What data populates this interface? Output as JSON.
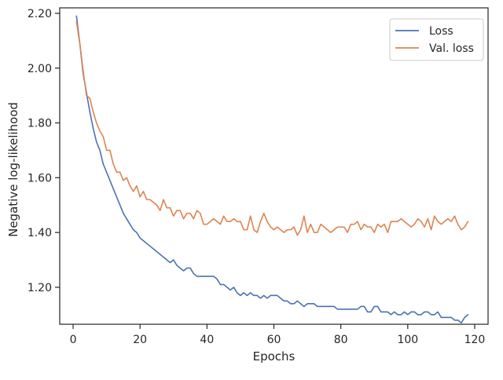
{
  "chart_data": {
    "type": "line",
    "title": "",
    "xlabel": "Epochs",
    "ylabel": "Negative log-likelihood",
    "xlim": [
      -4,
      124
    ],
    "ylim": [
      1.065,
      2.22
    ],
    "xticks": [
      0,
      20,
      40,
      60,
      80,
      100,
      120
    ],
    "xtick_labels": [
      "0",
      "20",
      "40",
      "60",
      "80",
      "100",
      "120"
    ],
    "yticks": [
      1.2,
      1.4,
      1.6,
      1.8,
      2.0,
      2.2
    ],
    "ytick_labels": [
      "1.20",
      "1.40",
      "1.60",
      "1.80",
      "2.00",
      "2.20"
    ],
    "grid": false,
    "legend_position": "top-right",
    "x": [
      1,
      2,
      3,
      4,
      5,
      6,
      7,
      8,
      9,
      10,
      11,
      12,
      13,
      14,
      15,
      16,
      17,
      18,
      19,
      20,
      21,
      22,
      23,
      24,
      25,
      26,
      27,
      28,
      29,
      30,
      31,
      32,
      33,
      34,
      35,
      36,
      37,
      38,
      39,
      40,
      41,
      42,
      43,
      44,
      45,
      46,
      47,
      48,
      49,
      50,
      51,
      52,
      53,
      54,
      55,
      56,
      57,
      58,
      59,
      60,
      61,
      62,
      63,
      64,
      65,
      66,
      67,
      68,
      69,
      70,
      71,
      72,
      73,
      74,
      75,
      76,
      77,
      78,
      79,
      80,
      81,
      82,
      83,
      84,
      85,
      86,
      87,
      88,
      89,
      90,
      91,
      92,
      93,
      94,
      95,
      96,
      97,
      98,
      99,
      100,
      101,
      102,
      103,
      104,
      105,
      106,
      107,
      108,
      109,
      110,
      111,
      112,
      113,
      114,
      115,
      116,
      117,
      118
    ],
    "series": [
      {
        "name": "Loss",
        "color": "#4c72b0",
        "values": [
          2.19,
          2.09,
          1.98,
          1.91,
          1.84,
          1.78,
          1.73,
          1.7,
          1.65,
          1.62,
          1.59,
          1.56,
          1.53,
          1.5,
          1.47,
          1.45,
          1.43,
          1.41,
          1.4,
          1.38,
          1.37,
          1.36,
          1.35,
          1.34,
          1.33,
          1.32,
          1.31,
          1.3,
          1.29,
          1.3,
          1.28,
          1.27,
          1.26,
          1.27,
          1.27,
          1.25,
          1.24,
          1.24,
          1.24,
          1.24,
          1.24,
          1.24,
          1.23,
          1.21,
          1.21,
          1.2,
          1.19,
          1.2,
          1.18,
          1.17,
          1.18,
          1.17,
          1.18,
          1.17,
          1.17,
          1.16,
          1.17,
          1.16,
          1.17,
          1.17,
          1.17,
          1.16,
          1.15,
          1.15,
          1.14,
          1.14,
          1.15,
          1.14,
          1.13,
          1.14,
          1.14,
          1.14,
          1.13,
          1.13,
          1.13,
          1.13,
          1.13,
          1.13,
          1.12,
          1.12,
          1.12,
          1.12,
          1.12,
          1.12,
          1.12,
          1.13,
          1.13,
          1.11,
          1.11,
          1.13,
          1.13,
          1.11,
          1.11,
          1.11,
          1.1,
          1.11,
          1.1,
          1.1,
          1.11,
          1.1,
          1.11,
          1.11,
          1.1,
          1.1,
          1.11,
          1.11,
          1.1,
          1.1,
          1.11,
          1.09,
          1.09,
          1.09,
          1.09,
          1.08,
          1.08,
          1.07,
          1.09,
          1.1
        ]
      },
      {
        "name": "Val. loss",
        "color": "#dd8452",
        "values": [
          2.17,
          2.09,
          1.99,
          1.9,
          1.89,
          1.84,
          1.8,
          1.77,
          1.75,
          1.7,
          1.7,
          1.65,
          1.62,
          1.62,
          1.59,
          1.6,
          1.57,
          1.55,
          1.57,
          1.53,
          1.55,
          1.52,
          1.52,
          1.51,
          1.5,
          1.48,
          1.52,
          1.49,
          1.49,
          1.46,
          1.48,
          1.48,
          1.45,
          1.47,
          1.47,
          1.45,
          1.48,
          1.47,
          1.43,
          1.43,
          1.44,
          1.45,
          1.44,
          1.43,
          1.46,
          1.44,
          1.44,
          1.45,
          1.44,
          1.44,
          1.41,
          1.41,
          1.46,
          1.41,
          1.4,
          1.44,
          1.47,
          1.44,
          1.42,
          1.41,
          1.42,
          1.41,
          1.4,
          1.41,
          1.41,
          1.42,
          1.39,
          1.41,
          1.46,
          1.4,
          1.43,
          1.4,
          1.4,
          1.43,
          1.42,
          1.41,
          1.4,
          1.41,
          1.42,
          1.42,
          1.42,
          1.4,
          1.43,
          1.43,
          1.44,
          1.41,
          1.43,
          1.42,
          1.42,
          1.4,
          1.43,
          1.42,
          1.43,
          1.4,
          1.44,
          1.44,
          1.44,
          1.45,
          1.44,
          1.43,
          1.42,
          1.43,
          1.45,
          1.44,
          1.42,
          1.45,
          1.41,
          1.46,
          1.44,
          1.43,
          1.44,
          1.45,
          1.44,
          1.46,
          1.43,
          1.41,
          1.42,
          1.44
        ]
      }
    ]
  }
}
